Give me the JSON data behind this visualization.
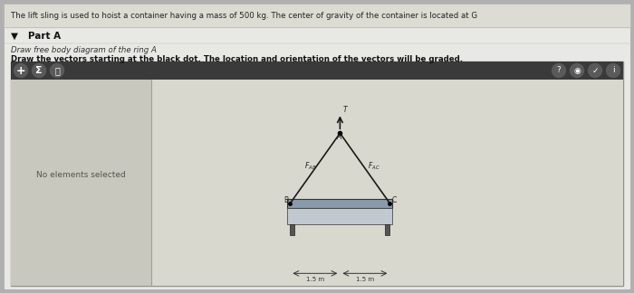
{
  "title_text": "The lift sling is used to hoist a container having a mass of 500 kg. The center of gravity of the container is located at G",
  "part_label": "Part A",
  "instruction1": "Draw free body diagram of the ring A",
  "instruction2": "Draw the vectors starting at the black dot. The location and orientation of the vectors will be graded.",
  "no_elements_text": "No elements selected",
  "toolbar_bg": "#3a3a3a",
  "page_bg": "#b0b0b0",
  "panel_bg": "#c8c8c0",
  "content_bg": "#e0e0d8",
  "diagram_bg": "#d8d8d0",
  "box_bg": "#d0d0c8",
  "title_area_bg": "#dcdcd4",
  "rope_color": "#1a1a1a",
  "container_top_color": "#8a9aaa",
  "container_body_color": "#a0a8b0",
  "container_support_color": "#555555",
  "dim_color": "#333333",
  "text_color": "#222222"
}
